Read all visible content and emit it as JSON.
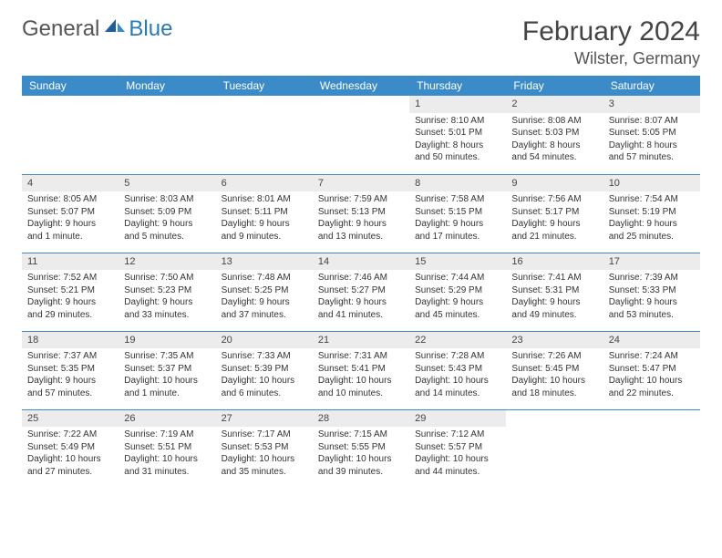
{
  "brand": {
    "general": "General",
    "blue": "Blue"
  },
  "title": "February 2024",
  "location": "Wilster, Germany",
  "header_bg": "#3b8bc9",
  "header_fg": "#ffffff",
  "daynum_bg": "#ececec",
  "days": [
    "Sunday",
    "Monday",
    "Tuesday",
    "Wednesday",
    "Thursday",
    "Friday",
    "Saturday"
  ],
  "weeks": [
    [
      {
        "n": "",
        "sr": "",
        "ss": "",
        "dl": ""
      },
      {
        "n": "",
        "sr": "",
        "ss": "",
        "dl": ""
      },
      {
        "n": "",
        "sr": "",
        "ss": "",
        "dl": ""
      },
      {
        "n": "",
        "sr": "",
        "ss": "",
        "dl": ""
      },
      {
        "n": "1",
        "sr": "Sunrise: 8:10 AM",
        "ss": "Sunset: 5:01 PM",
        "dl": "Daylight: 8 hours and 50 minutes."
      },
      {
        "n": "2",
        "sr": "Sunrise: 8:08 AM",
        "ss": "Sunset: 5:03 PM",
        "dl": "Daylight: 8 hours and 54 minutes."
      },
      {
        "n": "3",
        "sr": "Sunrise: 8:07 AM",
        "ss": "Sunset: 5:05 PM",
        "dl": "Daylight: 8 hours and 57 minutes."
      }
    ],
    [
      {
        "n": "4",
        "sr": "Sunrise: 8:05 AM",
        "ss": "Sunset: 5:07 PM",
        "dl": "Daylight: 9 hours and 1 minute."
      },
      {
        "n": "5",
        "sr": "Sunrise: 8:03 AM",
        "ss": "Sunset: 5:09 PM",
        "dl": "Daylight: 9 hours and 5 minutes."
      },
      {
        "n": "6",
        "sr": "Sunrise: 8:01 AM",
        "ss": "Sunset: 5:11 PM",
        "dl": "Daylight: 9 hours and 9 minutes."
      },
      {
        "n": "7",
        "sr": "Sunrise: 7:59 AM",
        "ss": "Sunset: 5:13 PM",
        "dl": "Daylight: 9 hours and 13 minutes."
      },
      {
        "n": "8",
        "sr": "Sunrise: 7:58 AM",
        "ss": "Sunset: 5:15 PM",
        "dl": "Daylight: 9 hours and 17 minutes."
      },
      {
        "n": "9",
        "sr": "Sunrise: 7:56 AM",
        "ss": "Sunset: 5:17 PM",
        "dl": "Daylight: 9 hours and 21 minutes."
      },
      {
        "n": "10",
        "sr": "Sunrise: 7:54 AM",
        "ss": "Sunset: 5:19 PM",
        "dl": "Daylight: 9 hours and 25 minutes."
      }
    ],
    [
      {
        "n": "11",
        "sr": "Sunrise: 7:52 AM",
        "ss": "Sunset: 5:21 PM",
        "dl": "Daylight: 9 hours and 29 minutes."
      },
      {
        "n": "12",
        "sr": "Sunrise: 7:50 AM",
        "ss": "Sunset: 5:23 PM",
        "dl": "Daylight: 9 hours and 33 minutes."
      },
      {
        "n": "13",
        "sr": "Sunrise: 7:48 AM",
        "ss": "Sunset: 5:25 PM",
        "dl": "Daylight: 9 hours and 37 minutes."
      },
      {
        "n": "14",
        "sr": "Sunrise: 7:46 AM",
        "ss": "Sunset: 5:27 PM",
        "dl": "Daylight: 9 hours and 41 minutes."
      },
      {
        "n": "15",
        "sr": "Sunrise: 7:44 AM",
        "ss": "Sunset: 5:29 PM",
        "dl": "Daylight: 9 hours and 45 minutes."
      },
      {
        "n": "16",
        "sr": "Sunrise: 7:41 AM",
        "ss": "Sunset: 5:31 PM",
        "dl": "Daylight: 9 hours and 49 minutes."
      },
      {
        "n": "17",
        "sr": "Sunrise: 7:39 AM",
        "ss": "Sunset: 5:33 PM",
        "dl": "Daylight: 9 hours and 53 minutes."
      }
    ],
    [
      {
        "n": "18",
        "sr": "Sunrise: 7:37 AM",
        "ss": "Sunset: 5:35 PM",
        "dl": "Daylight: 9 hours and 57 minutes."
      },
      {
        "n": "19",
        "sr": "Sunrise: 7:35 AM",
        "ss": "Sunset: 5:37 PM",
        "dl": "Daylight: 10 hours and 1 minute."
      },
      {
        "n": "20",
        "sr": "Sunrise: 7:33 AM",
        "ss": "Sunset: 5:39 PM",
        "dl": "Daylight: 10 hours and 6 minutes."
      },
      {
        "n": "21",
        "sr": "Sunrise: 7:31 AM",
        "ss": "Sunset: 5:41 PM",
        "dl": "Daylight: 10 hours and 10 minutes."
      },
      {
        "n": "22",
        "sr": "Sunrise: 7:28 AM",
        "ss": "Sunset: 5:43 PM",
        "dl": "Daylight: 10 hours and 14 minutes."
      },
      {
        "n": "23",
        "sr": "Sunrise: 7:26 AM",
        "ss": "Sunset: 5:45 PM",
        "dl": "Daylight: 10 hours and 18 minutes."
      },
      {
        "n": "24",
        "sr": "Sunrise: 7:24 AM",
        "ss": "Sunset: 5:47 PM",
        "dl": "Daylight: 10 hours and 22 minutes."
      }
    ],
    [
      {
        "n": "25",
        "sr": "Sunrise: 7:22 AM",
        "ss": "Sunset: 5:49 PM",
        "dl": "Daylight: 10 hours and 27 minutes."
      },
      {
        "n": "26",
        "sr": "Sunrise: 7:19 AM",
        "ss": "Sunset: 5:51 PM",
        "dl": "Daylight: 10 hours and 31 minutes."
      },
      {
        "n": "27",
        "sr": "Sunrise: 7:17 AM",
        "ss": "Sunset: 5:53 PM",
        "dl": "Daylight: 10 hours and 35 minutes."
      },
      {
        "n": "28",
        "sr": "Sunrise: 7:15 AM",
        "ss": "Sunset: 5:55 PM",
        "dl": "Daylight: 10 hours and 39 minutes."
      },
      {
        "n": "29",
        "sr": "Sunrise: 7:12 AM",
        "ss": "Sunset: 5:57 PM",
        "dl": "Daylight: 10 hours and 44 minutes."
      },
      {
        "n": "",
        "sr": "",
        "ss": "",
        "dl": ""
      },
      {
        "n": "",
        "sr": "",
        "ss": "",
        "dl": ""
      }
    ]
  ]
}
